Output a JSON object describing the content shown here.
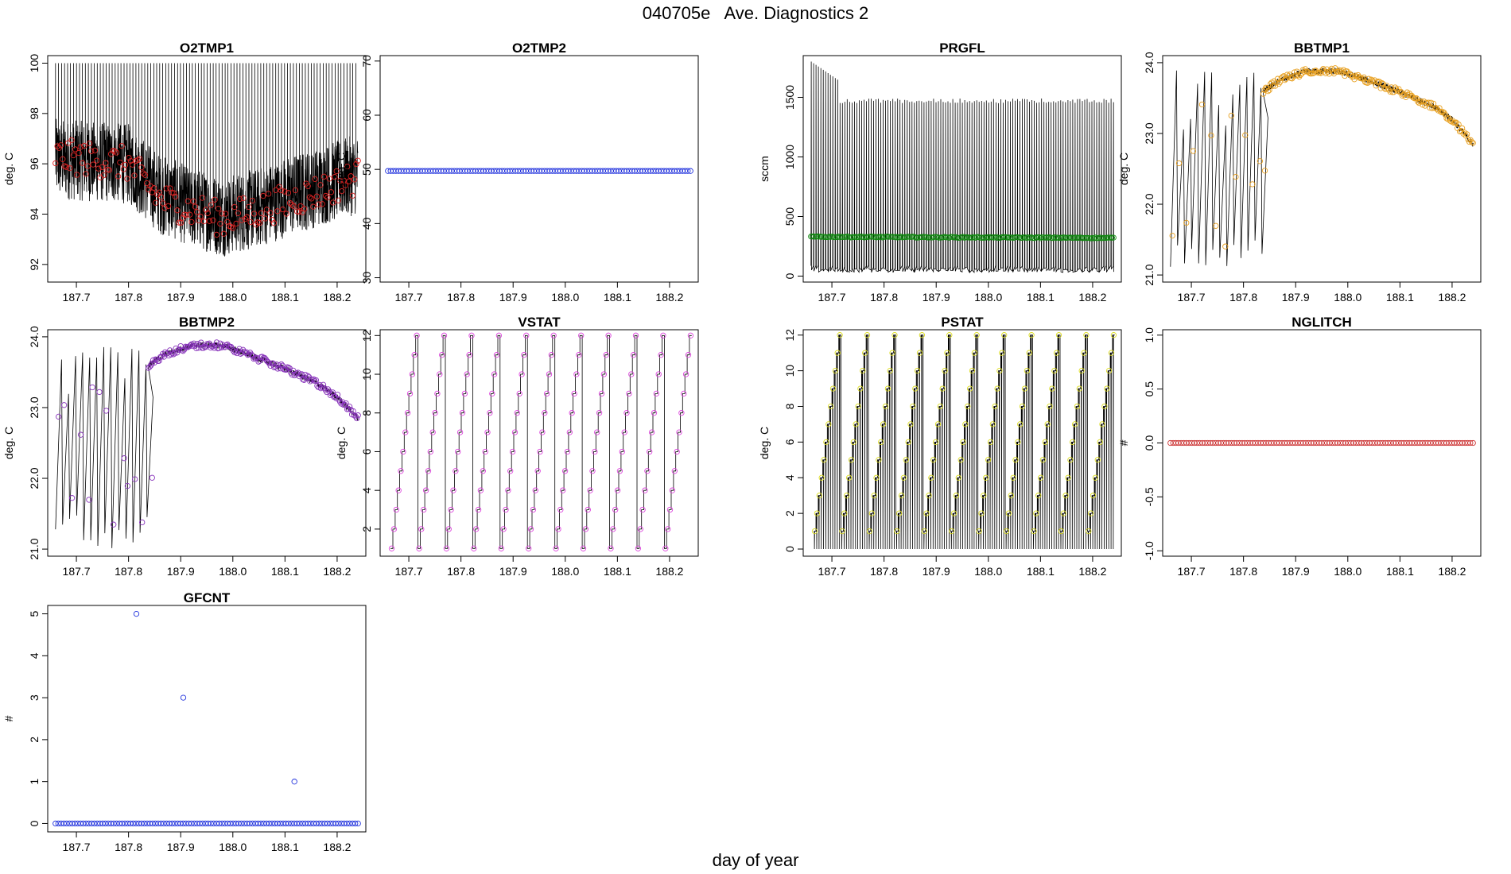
{
  "page": {
    "title": "040705e   Ave. Diagnostics 2",
    "xlabel": "day of year"
  },
  "chart_data": [
    {
      "id": "O2TMP1",
      "type": "line",
      "title": "O2TMP1",
      "ylabel": "deg. C",
      "xlim": [
        187.645,
        188.255
      ],
      "ylim": [
        91.3,
        100.3
      ],
      "xticks": [
        "187.7",
        "187.8",
        "187.9",
        "188.0",
        "188.1",
        "188.2"
      ],
      "yticks": [
        "92",
        "94",
        "96",
        "98",
        "100"
      ],
      "point_color": "#dd2222",
      "series": [
        {
          "kind": "raw",
          "x_range": [
            187.66,
            188.24
          ],
          "trend_x": [
            187.66,
            187.72,
            187.8,
            187.86,
            187.92,
            187.98,
            188.04,
            188.12,
            188.18,
            188.24
          ],
          "trend_y": [
            96.2,
            96.1,
            96.0,
            94.8,
            94.3,
            93.9,
            94.2,
            94.8,
            95.2,
            95.6
          ],
          "noise": 1.6,
          "spikes": 100,
          "spike_period": 0.0057
        },
        {
          "kind": "points",
          "x_range": [
            187.66,
            188.24
          ],
          "trend_x": [
            187.66,
            187.72,
            187.8,
            187.86,
            187.92,
            187.98,
            188.04,
            188.12,
            188.18,
            188.24
          ],
          "trend_y": [
            96.3,
            96.2,
            96.0,
            94.6,
            94.2,
            93.8,
            94.1,
            94.6,
            95.0,
            95.5
          ],
          "noise": 0.7,
          "count": 170
        }
      ]
    },
    {
      "id": "O2TMP2",
      "type": "scatter",
      "title": "O2TMP2",
      "ylabel": "deg. C",
      "xlim": [
        187.645,
        188.255
      ],
      "ylim": [
        29.2,
        71
      ],
      "xticks": [
        "187.7",
        "187.8",
        "187.9",
        "188.0",
        "188.1",
        "188.2"
      ],
      "yticks": [
        "30",
        "40",
        "50",
        "60",
        "70"
      ],
      "point_color": "#2233dd",
      "series": [
        {
          "kind": "points",
          "x_range": [
            187.66,
            188.24
          ],
          "trend_x": [
            187.66,
            188.24
          ],
          "trend_y": [
            49.7,
            49.7
          ],
          "noise": 0,
          "count": 115
        }
      ]
    },
    {
      "id": "PRGFL",
      "type": "line",
      "title": "PRGFL",
      "ylabel": "sccm",
      "xlim": [
        187.645,
        188.255
      ],
      "ylim": [
        -50,
        1850
      ],
      "xticks": [
        "187.7",
        "187.8",
        "187.9",
        "188.0",
        "188.1",
        "188.2"
      ],
      "yticks": [
        "0",
        "500",
        "1000",
        "1500"
      ],
      "point_color": "#118811",
      "series": [
        {
          "kind": "raw_bands",
          "x_range": [
            187.66,
            188.24
          ],
          "top": 1490,
          "bottom": 30,
          "early_top": 1800,
          "early_end": 187.715,
          "period": 0.0046
        },
        {
          "kind": "points",
          "x_range": [
            187.66,
            188.24
          ],
          "trend_x": [
            187.66,
            188.24
          ],
          "trend_y": [
            330,
            320
          ],
          "noise": 4,
          "count": 200
        }
      ]
    },
    {
      "id": "BBTMP1",
      "type": "line",
      "title": "BBTMP1",
      "ylabel": "deg. C",
      "xlim": [
        187.645,
        188.255
      ],
      "ylim": [
        20.9,
        24.1
      ],
      "xticks": [
        "187.7",
        "187.8",
        "187.9",
        "188.0",
        "188.1",
        "188.2"
      ],
      "yticks": [
        "21.0",
        "22.0",
        "23.0",
        "24.0"
      ],
      "point_color": "#e8a020",
      "series": [
        {
          "kind": "saw_then_trend",
          "x_range": [
            187.66,
            188.24
          ],
          "switch_x": 187.838,
          "saw_period": 0.0135,
          "saw_low": [
            21.1,
            21.5
          ],
          "saw_high": [
            23.0,
            23.9
          ],
          "trend_x": [
            187.838,
            187.87,
            187.92,
            187.98,
            188.04,
            188.1,
            188.16,
            188.2,
            188.24
          ],
          "trend_y": [
            23.6,
            23.75,
            23.88,
            23.88,
            23.75,
            23.58,
            23.4,
            23.2,
            22.85
          ]
        }
      ]
    },
    {
      "id": "BBTMP2",
      "type": "line",
      "title": "BBTMP2",
      "ylabel": "deg. C",
      "xlim": [
        187.645,
        188.255
      ],
      "ylim": [
        20.9,
        24.1
      ],
      "xticks": [
        "187.7",
        "187.8",
        "187.9",
        "188.0",
        "188.1",
        "188.2"
      ],
      "yticks": [
        "21.0",
        "22.0",
        "23.0",
        "24.0"
      ],
      "point_color": "#8833bb",
      "series": [
        {
          "kind": "saw_then_trend",
          "x_range": [
            187.66,
            188.24
          ],
          "switch_x": 187.838,
          "saw_period": 0.0135,
          "saw_low": [
            21.0,
            21.5
          ],
          "saw_high": [
            23.1,
            23.9
          ],
          "trend_x": [
            187.838,
            187.87,
            187.92,
            187.98,
            188.04,
            188.1,
            188.16,
            188.2,
            188.24
          ],
          "trend_y": [
            23.6,
            23.75,
            23.88,
            23.88,
            23.72,
            23.55,
            23.35,
            23.15,
            22.85
          ]
        }
      ]
    },
    {
      "id": "VSTAT",
      "type": "line",
      "title": "VSTAT",
      "ylabel": "deg. C",
      "xlim": [
        187.645,
        188.255
      ],
      "ylim": [
        0.6,
        12.3
      ],
      "xticks": [
        "187.7",
        "187.8",
        "187.9",
        "188.0",
        "188.1",
        "188.2"
      ],
      "yticks": [
        "2",
        "4",
        "6",
        "8",
        "10",
        "12"
      ],
      "point_color": "#dd44dd",
      "series": [
        {
          "kind": "staircase",
          "x_range": [
            187.665,
            188.24
          ],
          "cycle": 0.0525,
          "levels": [
            1,
            2,
            3,
            4,
            5,
            6,
            7,
            8,
            9,
            10,
            11,
            12
          ],
          "end_level": 10
        }
      ]
    },
    {
      "id": "PSTAT",
      "type": "line",
      "title": "PSTAT",
      "ylabel": "deg. C",
      "xlim": [
        187.645,
        188.255
      ],
      "ylim": [
        -0.4,
        12.3
      ],
      "xticks": [
        "187.7",
        "187.8",
        "187.9",
        "188.0",
        "188.1",
        "188.2"
      ],
      "yticks": [
        "0",
        "2",
        "4",
        "6",
        "8",
        "10",
        "12"
      ],
      "point_color": "#dddd22",
      "series": [
        {
          "kind": "staircase_spiky",
          "x_range": [
            187.665,
            188.24
          ],
          "cycle": 0.0525,
          "levels": [
            1,
            2,
            3,
            4,
            5,
            6,
            7,
            8,
            9,
            10,
            11,
            12
          ],
          "end_level": 11
        }
      ]
    },
    {
      "id": "NGLITCH",
      "type": "scatter",
      "title": "NGLITCH",
      "ylabel": "#",
      "xlim": [
        187.645,
        188.255
      ],
      "ylim": [
        -1.05,
        1.05
      ],
      "xticks": [
        "187.7",
        "187.8",
        "187.9",
        "188.0",
        "188.1",
        "188.2"
      ],
      "yticks": [
        "-1.0",
        "-0.5",
        "0.0",
        "0.5",
        "1.0"
      ],
      "point_color": "#cc3333",
      "series": [
        {
          "kind": "points",
          "x_range": [
            187.66,
            188.24
          ],
          "trend_x": [
            187.66,
            188.24
          ],
          "trend_y": [
            0,
            0
          ],
          "noise": 0,
          "count": 115
        }
      ]
    },
    {
      "id": "GFCNT",
      "type": "scatter",
      "title": "GFCNT",
      "ylabel": "#",
      "xlim": [
        187.645,
        188.255
      ],
      "ylim": [
        -0.2,
        5.2
      ],
      "xticks": [
        "187.7",
        "187.8",
        "187.9",
        "188.0",
        "188.1",
        "188.2"
      ],
      "yticks": [
        "0",
        "1",
        "2",
        "3",
        "4",
        "5"
      ],
      "point_color": "#2233dd",
      "series": [
        {
          "kind": "points",
          "x_range": [
            187.66,
            188.24
          ],
          "trend_x": [
            187.66,
            188.24
          ],
          "trend_y": [
            0,
            0
          ],
          "noise": 0,
          "count": 110
        },
        {
          "kind": "outliers",
          "x": [
            187.815,
            187.905,
            188.118
          ],
          "y": [
            5,
            3,
            1
          ]
        }
      ]
    }
  ]
}
